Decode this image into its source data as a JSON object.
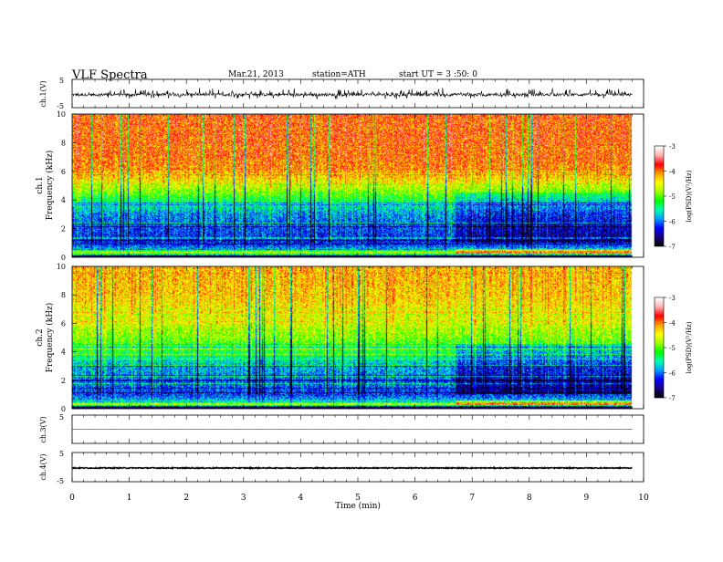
{
  "header": {
    "title": "VLF  Spectra",
    "date": "Mar.21, 2013",
    "station": "station=ATH",
    "start": "start  UT =   3  :50: 0"
  },
  "colors": {
    "spectrum": [
      "#000000",
      "#1a0080",
      "#0000ff",
      "#00a0ff",
      "#00ffb0",
      "#00ff00",
      "#a0ff00",
      "#ffff00",
      "#ffa000",
      "#ff0000",
      "#ffb0b0",
      "#ffffff"
    ]
  },
  "chart_data": [
    {
      "type": "line",
      "name": "ch1-waveform",
      "ylabel": "ch.1(V)",
      "ylim": [
        -5,
        5
      ],
      "yticks": [
        "5",
        "-5"
      ],
      "xlim": [
        0,
        10
      ],
      "baseline": -0.4,
      "noise": 0.5,
      "spike_rate": 0.18,
      "spike_amp": 3.5,
      "duration_min": 9.8
    },
    {
      "type": "heatmap",
      "name": "ch1-spectrogram",
      "ylabel": "ch.1\nFrequency (kHz)",
      "ylabel_ch": "ch.1",
      "ylabel_freq": "Frequency (kHz)",
      "ylim": [
        0,
        10
      ],
      "yticks": [
        "0",
        "2",
        "4",
        "6",
        "8",
        "10"
      ],
      "xlim": [
        0,
        10
      ],
      "duration_min": 9.8,
      "colorbar": {
        "label": "log(PSD)(V²/Hz)",
        "range": [
          -7,
          -3
        ],
        "ticks": [
          "-3",
          "-4",
          "-5",
          "-6",
          "-7"
        ]
      },
      "profile": [
        {
          "f": 0.0,
          "v": -6.6
        },
        {
          "f": 0.3,
          "v": -4.6
        },
        {
          "f": 0.6,
          "v": -5.9
        },
        {
          "f": 1.0,
          "v": -6.3
        },
        {
          "f": 2.0,
          "v": -6.1
        },
        {
          "f": 3.0,
          "v": -5.9
        },
        {
          "f": 4.0,
          "v": -5.3
        },
        {
          "f": 5.0,
          "v": -4.6
        },
        {
          "f": 6.0,
          "v": -4.1
        },
        {
          "f": 7.0,
          "v": -3.95
        },
        {
          "f": 8.0,
          "v": -3.9
        },
        {
          "f": 10.0,
          "v": -3.85
        }
      ]
    },
    {
      "type": "heatmap",
      "name": "ch2-spectrogram",
      "ylabel": "ch.2\nFrequency (kHz)",
      "ylabel_ch": "ch.2",
      "ylabel_freq": "Frequency (kHz)",
      "ylim": [
        0,
        10
      ],
      "yticks": [
        "0",
        "2",
        "4",
        "6",
        "8",
        "10"
      ],
      "xlim": [
        0,
        10
      ],
      "duration_min": 9.8,
      "colorbar": {
        "label": "log(PSD)(V²/Hz)",
        "range": [
          -7,
          -3
        ],
        "ticks": [
          "-3",
          "-4",
          "-5",
          "-6",
          "-7"
        ]
      },
      "profile": [
        {
          "f": 0.0,
          "v": -6.6
        },
        {
          "f": 0.3,
          "v": -4.7
        },
        {
          "f": 0.6,
          "v": -5.8
        },
        {
          "f": 1.0,
          "v": -6.2
        },
        {
          "f": 2.0,
          "v": -6.0
        },
        {
          "f": 3.0,
          "v": -5.8
        },
        {
          "f": 4.0,
          "v": -5.3
        },
        {
          "f": 5.0,
          "v": -4.9
        },
        {
          "f": 6.0,
          "v": -4.6
        },
        {
          "f": 7.0,
          "v": -4.45
        },
        {
          "f": 8.0,
          "v": -4.3
        },
        {
          "f": 10.0,
          "v": -4.2
        }
      ]
    },
    {
      "type": "line",
      "name": "ch3-waveform",
      "ylabel": "ch.3(V)",
      "ylim": [
        -5,
        5
      ],
      "yticks": [
        "5"
      ],
      "xlim": [
        0,
        10
      ],
      "baseline": 0.0,
      "noise": 0.0,
      "duration_min": 9.8
    },
    {
      "type": "line",
      "name": "ch4-waveform",
      "ylabel": "ch.4(V)",
      "ylim": [
        -5,
        5
      ],
      "yticks": [
        "5",
        "-5"
      ],
      "xlim": [
        0,
        10
      ],
      "xticks": [
        "0",
        "1",
        "2",
        "3",
        "4",
        "5",
        "6",
        "7",
        "8",
        "9",
        "10"
      ],
      "xlabel": "Time  (min)",
      "baseline": -0.3,
      "noise": 0.18,
      "duration_min": 9.8
    }
  ]
}
